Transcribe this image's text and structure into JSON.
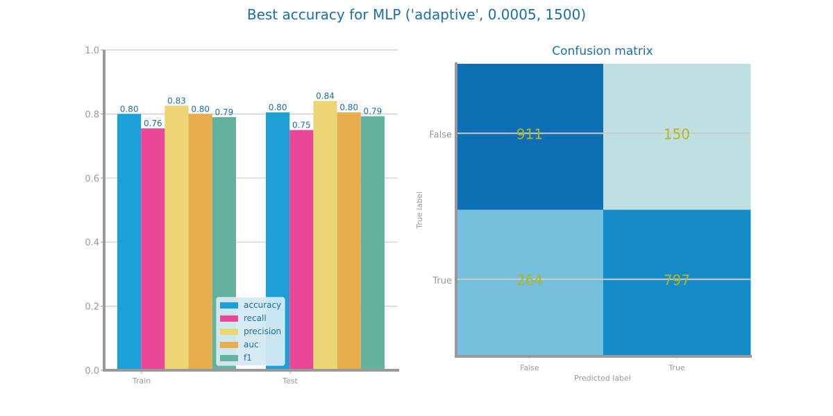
{
  "figure": {
    "title": "Best accuracy for MLP ('adaptive', 0.0005, 1500)",
    "title_color": "#1a6fa8"
  },
  "colors": {
    "text_accent": "#1a6fa8",
    "axis": "#999999",
    "grid": "#cccccc",
    "cell_text": "#b3b81a",
    "legend_bg": "#d4eaf4"
  },
  "chart_data": [
    {
      "type": "bar",
      "title": "",
      "xlabel": "",
      "ylabel": "",
      "categories": [
        "Train",
        "Test"
      ],
      "ylim": [
        0,
        1.0
      ],
      "yticks": [
        "0.0",
        "0.2",
        "0.4",
        "0.6",
        "0.8",
        "1.0"
      ],
      "grid": true,
      "legend_position": "bottom-right",
      "series": [
        {
          "name": "accuracy",
          "color": "#1ba1d8",
          "values": [
            0.8,
            0.805
          ],
          "labels": [
            "0.80",
            "0.80"
          ]
        },
        {
          "name": "recall",
          "color": "#ea4799",
          "values": [
            0.755,
            0.75
          ],
          "labels": [
            "0.76",
            "0.75"
          ]
        },
        {
          "name": "precision",
          "color": "#ebd574",
          "values": [
            0.826,
            0.841
          ],
          "labels": [
            "0.83",
            "0.84"
          ]
        },
        {
          "name": "auc",
          "color": "#e8ae4d",
          "values": [
            0.8,
            0.805
          ],
          "labels": [
            "0.80",
            "0.80"
          ]
        },
        {
          "name": "f1",
          "color": "#63b29d",
          "values": [
            0.79,
            0.793
          ],
          "labels": [
            "0.79",
            "0.79"
          ]
        }
      ]
    },
    {
      "type": "heatmap",
      "title": "Confusion matrix",
      "xlabel": "Predicted label",
      "ylabel": "True label",
      "x_categories": [
        "False",
        "True"
      ],
      "y_categories": [
        "False",
        "True"
      ],
      "values": [
        [
          911,
          150
        ],
        [
          264,
          797
        ]
      ],
      "cell_colors": [
        [
          "#0e70b4",
          "#c0dfe3"
        ],
        [
          "#74bfdb",
          "#148cca"
        ]
      ]
    }
  ]
}
